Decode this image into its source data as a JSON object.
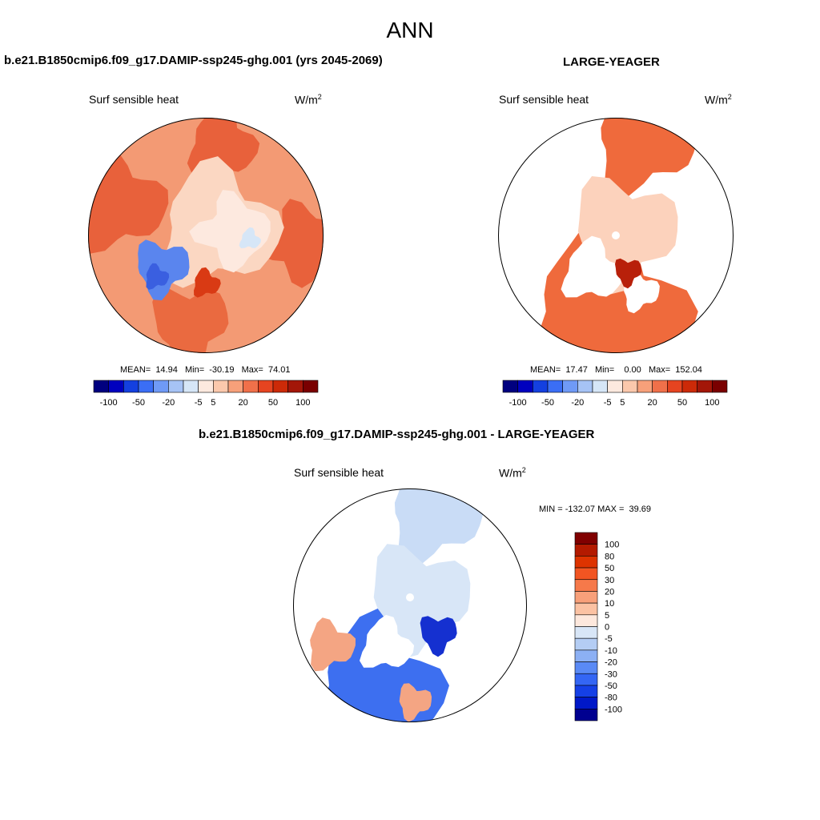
{
  "figure": {
    "title": "ANN"
  },
  "panels": [
    {
      "id": "model",
      "title": "b.e21.B1850cmip6.f09_g17.DAMIP-ssp245-ghg.001 (yrs 2045-2069)",
      "variable": "Surf sensible heat",
      "units_base": "W/m",
      "units_exp": "2",
      "stats": "MEAN=  14.94   Min=  -30.19   Max=  74.01",
      "mean": 14.94,
      "min": -30.19,
      "max": 74.01
    },
    {
      "id": "obs",
      "title": "LARGE-YEAGER",
      "variable": "Surf sensible heat",
      "units_base": "W/m",
      "units_exp": "2",
      "stats": "MEAN=  17.47   Min=    0.00   Max=  152.04",
      "mean": 17.47,
      "min": 0.0,
      "max": 152.04
    },
    {
      "id": "diff",
      "title": "b.e21.B1850cmip6.f09_g17.DAMIP-ssp245-ghg.001 - LARGE-YEAGER",
      "variable": "Surf sensible heat",
      "units_base": "W/m",
      "units_exp": "2",
      "stats": "MIN = -132.07 MAX =  39.69",
      "min": -132.07,
      "max": 39.69
    }
  ],
  "colorbars": {
    "horizontal": {
      "colors": [
        "#00007f",
        "#0000bf",
        "#1440e0",
        "#3b6ef5",
        "#6f9af6",
        "#a6c3f5",
        "#d6e6f7",
        "#fde9df",
        "#fbc8ac",
        "#f7a07a",
        "#f0704a",
        "#e64420",
        "#cc2a08",
        "#a31608",
        "#7a0000"
      ],
      "tick_labels": [
        "-100",
        "-50",
        "-20",
        "-5",
        "5",
        "20",
        "50",
        "100"
      ]
    },
    "vertical": {
      "colors_top_to_bottom": [
        "#800000",
        "#b31a00",
        "#dd3300",
        "#f25522",
        "#f6794a",
        "#f8a07a",
        "#fbc2a3",
        "#fde8dd",
        "#d8e6f7",
        "#b4cdf4",
        "#8cb0f4",
        "#5a8af5",
        "#3466f4",
        "#1540e6",
        "#0018c8",
        "#000090"
      ],
      "tick_labels": [
        "100",
        "80",
        "50",
        "30",
        "20",
        "10",
        "5",
        "0",
        "-5",
        "-10",
        "-20",
        "-30",
        "-50",
        "-80",
        "-100"
      ]
    }
  }
}
